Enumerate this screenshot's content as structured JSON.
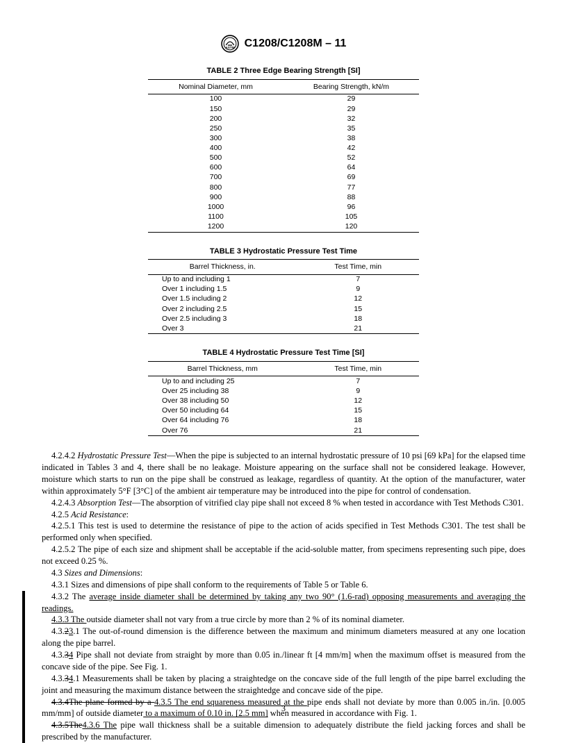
{
  "doc_id": "C1208/C1208M – 11",
  "page_number": "3",
  "table2": {
    "title": "TABLE 2  Three Edge Bearing Strength [SI]",
    "col1": "Nominal Diameter, mm",
    "col2": "Bearing Strength, kN/m",
    "rows": [
      [
        "100",
        "29"
      ],
      [
        "150",
        "29"
      ],
      [
        "200",
        "32"
      ],
      [
        "250",
        "35"
      ],
      [
        "300",
        "38"
      ],
      [
        "400",
        "42"
      ],
      [
        "500",
        "52"
      ],
      [
        "600",
        "64"
      ],
      [
        "700",
        "69"
      ],
      [
        "800",
        "77"
      ],
      [
        "900",
        "88"
      ],
      [
        "1000",
        "96"
      ],
      [
        "1100",
        "105"
      ],
      [
        "1200",
        "120"
      ]
    ]
  },
  "table3": {
    "title": "TABLE 3  Hydrostatic Pressure Test Time",
    "col1": "Barrel Thickness, in.",
    "col2": "Test Time, min",
    "rows": [
      [
        "Up to and including 1",
        "7"
      ],
      [
        "Over 1 including 1.5",
        "9"
      ],
      [
        "Over 1.5 including 2",
        "12"
      ],
      [
        "Over 2 including 2.5",
        "15"
      ],
      [
        "Over 2.5 including 3",
        "18"
      ],
      [
        "Over 3",
        "21"
      ]
    ]
  },
  "table4": {
    "title": "TABLE 4  Hydrostatic Pressure Test Time [SI]",
    "col1": "Barrel Thickness, mm",
    "col2": "Test Time, min",
    "rows": [
      [
        "Up to and including 25",
        "7"
      ],
      [
        "Over 25 including 38",
        "9"
      ],
      [
        "Over 38 including 50",
        "12"
      ],
      [
        "Over 50 including 64",
        "15"
      ],
      [
        "Over 64 including 76",
        "18"
      ],
      [
        "Over 76",
        "21"
      ]
    ]
  },
  "para": {
    "p1_lead": "4.2.4.2 ",
    "p1_head": "Hydrostatic Pressure Test",
    "p1_body": "—When the pipe is subjected to an internal hydrostatic pressure of 10 psi [69 kPa] for the elapsed time indicated in Tables 3 and 4, there shall be no leakage. Moisture appearing on the surface shall not be considered leakage. However, moisture which starts to run on the pipe shall be construed as leakage, regardless of quantity. At the option of the manufacturer, water within approximately 5°F [3°C] of the ambient air temperature may be introduced into the pipe for control of condensation.",
    "p2_lead": "4.2.4.3 ",
    "p2_head": "Absorption Test",
    "p2_body": "—The absorption of vitrified clay pipe shall not exceed 8 % when tested in accordance with Test Methods C301.",
    "p3_lead": "4.2.5 ",
    "p3_head": "Acid Resistance",
    "p3_tail": ":",
    "p4": "4.2.5.1 This test is used to determine the resistance of pipe to the action of acids specified in Test Methods C301. The test shall be performed only when specified.",
    "p5": "4.2.5.2 The pipe of each size and shipment shall be acceptable if the acid-soluble matter, from specimens representing such pipe, does not exceed 0.25 %.",
    "p6_lead": "4.3 ",
    "p6_head": "Sizes and Dimensions",
    "p6_tail": ":",
    "p7": "4.3.1 Sizes and dimensions of pipe shall conform to the requirements of Table 5 or Table 6.",
    "p8a": "4.3.2 The ",
    "p8b": "average inside diameter shall be determined by taking any two 90° (1.6-rad) opposing measurements and averaging the readings.",
    "p9a": "4.3.3 The ",
    "p9b": "outside diameter shall not vary from a true circle by more than 2 % of its nominal diameter.",
    "p10a": "4.3.",
    "p10b": "2",
    "p10c": "3",
    "p10d": ".1 The out-of-round dimension is the difference between the maximum and minimum diameters measured at any one location along the pipe barrel.",
    "p11a": "4.3.",
    "p11b": "3",
    "p11c": "4",
    "p11d": " Pipe shall not deviate from straight by more than 0.05 in./linear ft [4 mm/m] when the maximum offset is measured from the concave side of the pipe. See Fig. 1.",
    "p12a": "4.3.",
    "p12b": "3",
    "p12c": "4",
    "p12d": ".1 Measurements shall be taken by placing a straightedge on the concave side of the full length of the pipe barrel excluding the joint and measuring the maximum distance between the straightedge and concave side of the pipe.",
    "p13a": "4.3.4The plane formed by a ",
    "p13b": "4.3.5 ",
    "p13c": "The end squareness measured at the ",
    "p13d": "pipe ends shall not deviate by more than 0.005 in./in. [0.005 mm/mm] of outside diameter",
    "p13e": " to a maximum of 0.10 in. [2.5 mm]",
    "p13f": " when measured in accordance with Fig. 1.",
    "p14a": "4.3.5The",
    "p14b": "4.3.6 The",
    "p14c": " pipe wall thickness shall be a suitable dimension to adequately distribute the field jacking forces and shall be prescribed by the manufacturer."
  }
}
